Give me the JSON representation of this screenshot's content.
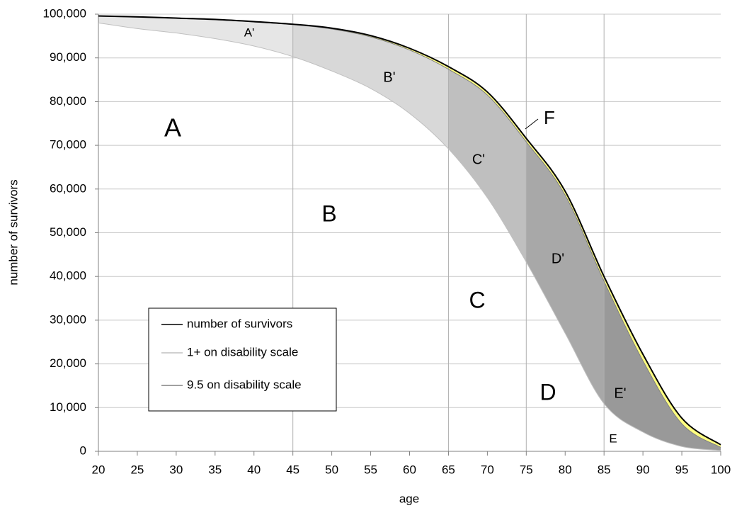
{
  "chart_data": {
    "type": "line",
    "x_label": "age",
    "y_label": "number of survivors",
    "x": [
      20,
      25,
      30,
      35,
      40,
      45,
      50,
      55,
      60,
      65,
      70,
      75,
      80,
      85,
      90,
      95,
      100
    ],
    "series": [
      {
        "name": "number of survivors",
        "color": "#000000",
        "values": [
          99600,
          99400,
          99100,
          98800,
          98300,
          97700,
          96800,
          95100,
          92200,
          88000,
          82200,
          71600,
          59500,
          40000,
          22200,
          7600,
          1500
        ]
      },
      {
        "name": "1+ on disability scale",
        "color": "#c0c0c0",
        "values": [
          98000,
          96700,
          95700,
          94400,
          92700,
          90300,
          87000,
          83000,
          77300,
          69200,
          58000,
          43300,
          27000,
          10900,
          4400,
          1100,
          200
        ]
      },
      {
        "name": "9.5 on disability scale",
        "color": "#808080",
        "values": [
          99500,
          99300,
          99000,
          98700,
          98200,
          97600,
          96600,
          94800,
          91800,
          87400,
          81500,
          70800,
          58600,
          38900,
          20700,
          6300,
          900
        ]
      }
    ],
    "dividers": [
      45,
      65,
      75,
      85
    ],
    "band_colors": [
      "#e6e6e6",
      "#d8d8d8",
      "#bfbfbf",
      "#a8a8a8",
      "#999999"
    ],
    "highlight_color": "#ffff80",
    "annotations": [
      "A",
      "B",
      "C",
      "D",
      "E",
      "F",
      "A'",
      "B'",
      "C'",
      "D'",
      "E'"
    ],
    "xlim": [
      20,
      100
    ],
    "xticks": [
      20,
      25,
      30,
      35,
      40,
      45,
      50,
      55,
      60,
      65,
      70,
      75,
      80,
      85,
      90,
      95,
      100
    ],
    "ylim": [
      0,
      100000
    ],
    "yticks": [
      0,
      {
        "value": 10000,
        "label": "10,000"
      },
      {
        "value": 20000,
        "label": "20,000"
      },
      {
        "value": 30000,
        "label": "30,000"
      },
      {
        "value": 40000,
        "label": "40,000"
      },
      {
        "value": 50000,
        "label": "50,000"
      },
      {
        "value": 60000,
        "label": "60,000"
      },
      {
        "value": 70000,
        "label": "70,000"
      },
      {
        "value": 80000,
        "label": "80,000"
      },
      {
        "value": 90000,
        "label": "90,000"
      },
      {
        "value": 100000,
        "label": "100,000"
      }
    ],
    "grid": true,
    "legend": "lower left"
  }
}
